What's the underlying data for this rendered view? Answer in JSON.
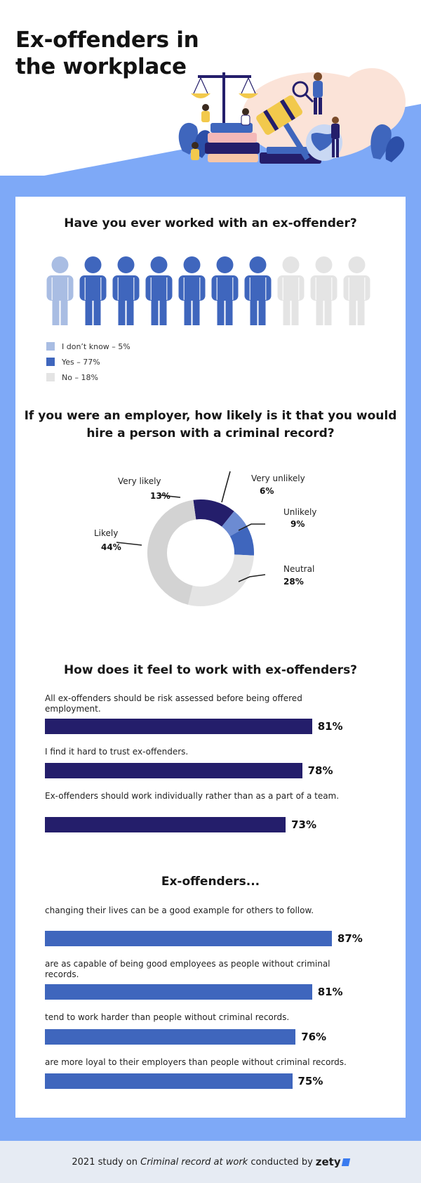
{
  "title": "Ex-offenders in the workplace",
  "colors": {
    "accent_light": "#a9bde3",
    "accent": "#3f66bd",
    "navy": "#241e6b",
    "grey": "#e4e4e4",
    "donut_grey": "#d3d3d3",
    "band": "#7ea9f7",
    "bar_navy": "#241e6b",
    "bar_blue": "#3f66bd"
  },
  "footer": {
    "prefix": "2021 study on",
    "italic": "Criminal record at work",
    "suffix": "conducted by",
    "brand": "zety"
  },
  "chart_data": [
    {
      "type": "pictogram",
      "title": "Have you ever worked with an ex-offender?",
      "icons_total": 10,
      "icon_colors": [
        "light",
        "blue",
        "blue",
        "blue",
        "blue",
        "blue",
        "blue",
        "grey",
        "grey",
        "grey"
      ],
      "legend": [
        {
          "label": "I don’t know – 5%",
          "color": "#a9bde3"
        },
        {
          "label": "Yes – 77%",
          "color": "#3f66bd"
        },
        {
          "label": "No – 18%",
          "color": "#e4e4e4"
        }
      ],
      "values": [
        {
          "category": "I don’t know",
          "value": 5
        },
        {
          "category": "Yes",
          "value": 77
        },
        {
          "category": "No",
          "value": 18
        }
      ]
    },
    {
      "type": "pie",
      "title": "If you were an employer, how likely is it that you would hire a person with a criminal record?",
      "slices": [
        {
          "label": "Very likely",
          "pct_label": "13%",
          "value": 13,
          "color": "#241e6b"
        },
        {
          "label": "Very unlikely",
          "pct_label": "6%",
          "value": 6,
          "color": "#6c8bd2"
        },
        {
          "label": "Unlikely",
          "pct_label": "9%",
          "value": 9,
          "color": "#3f66bd"
        },
        {
          "label": "Neutral",
          "pct_label": "28%",
          "value": 28,
          "color": "#e4e4e4"
        },
        {
          "label": "Likely",
          "pct_label": "44%",
          "value": 44,
          "color": "#d3d3d3"
        }
      ]
    },
    {
      "type": "bar",
      "orientation": "horizontal",
      "title": "How does it feel to work with ex-offenders?",
      "xlim": [
        0,
        100
      ],
      "color": "#241e6b",
      "items": [
        {
          "statement": "All ex-offenders should be risk assessed before being offered employment.",
          "value": 81,
          "label": "81%"
        },
        {
          "statement": "I find it hard to trust ex-offenders.",
          "value": 78,
          "label": "78%"
        },
        {
          "statement": "Ex-offenders should work individually rather than as a part of a team.",
          "value": 73,
          "label": "73%"
        }
      ]
    },
    {
      "type": "bar",
      "orientation": "horizontal",
      "title": "Ex-offenders...",
      "xlim": [
        0,
        100
      ],
      "color": "#3f66bd",
      "items": [
        {
          "statement": "changing their lives can be a good example for others to follow.",
          "value": 87,
          "label": "87%"
        },
        {
          "statement": "are as capable of being good employees as people without criminal records.",
          "value": 81,
          "label": "81%"
        },
        {
          "statement": "tend to work harder than people without criminal records.",
          "value": 76,
          "label": "76%"
        },
        {
          "statement": "are more loyal to their employers than people without criminal records.",
          "value": 75,
          "label": "75%"
        }
      ]
    }
  ]
}
